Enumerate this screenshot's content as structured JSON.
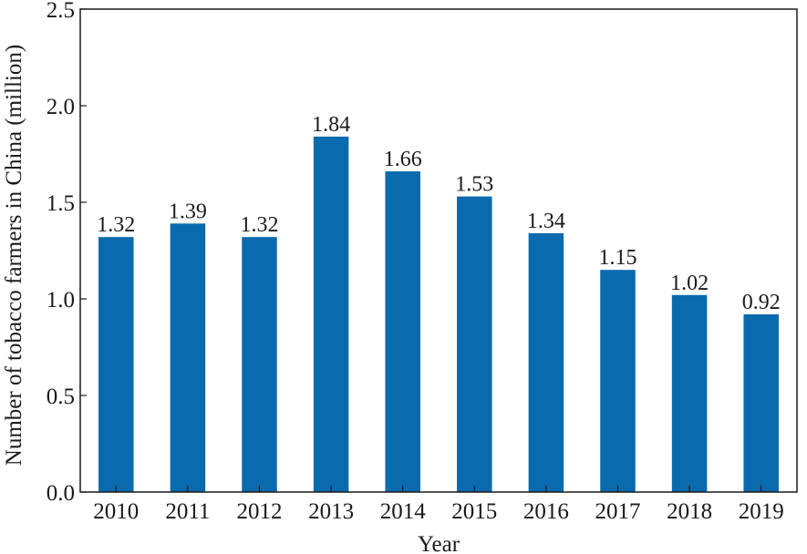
{
  "chart_data": {
    "type": "bar",
    "categories": [
      "2010",
      "2011",
      "2012",
      "2013",
      "2014",
      "2015",
      "2016",
      "2017",
      "2018",
      "2019"
    ],
    "values": [
      1.32,
      1.39,
      1.32,
      1.84,
      1.66,
      1.53,
      1.34,
      1.15,
      1.02,
      0.92
    ],
    "data_labels": [
      "1.32",
      "1.39",
      "1.32",
      "1.84",
      "1.66",
      "1.53",
      "1.34",
      "1.15",
      "1.02",
      "0.92"
    ],
    "xlabel": "Year",
    "ylabel": "Number of tobacco farmers in China (million)",
    "ylim": [
      0,
      2.5
    ],
    "yticks": [
      "0.0",
      "0.5",
      "1.0",
      "1.5",
      "2.0",
      "2.5"
    ],
    "grid": false,
    "colors": {
      "bar": "#0a6aae",
      "axis": "#1a1a1a"
    }
  }
}
